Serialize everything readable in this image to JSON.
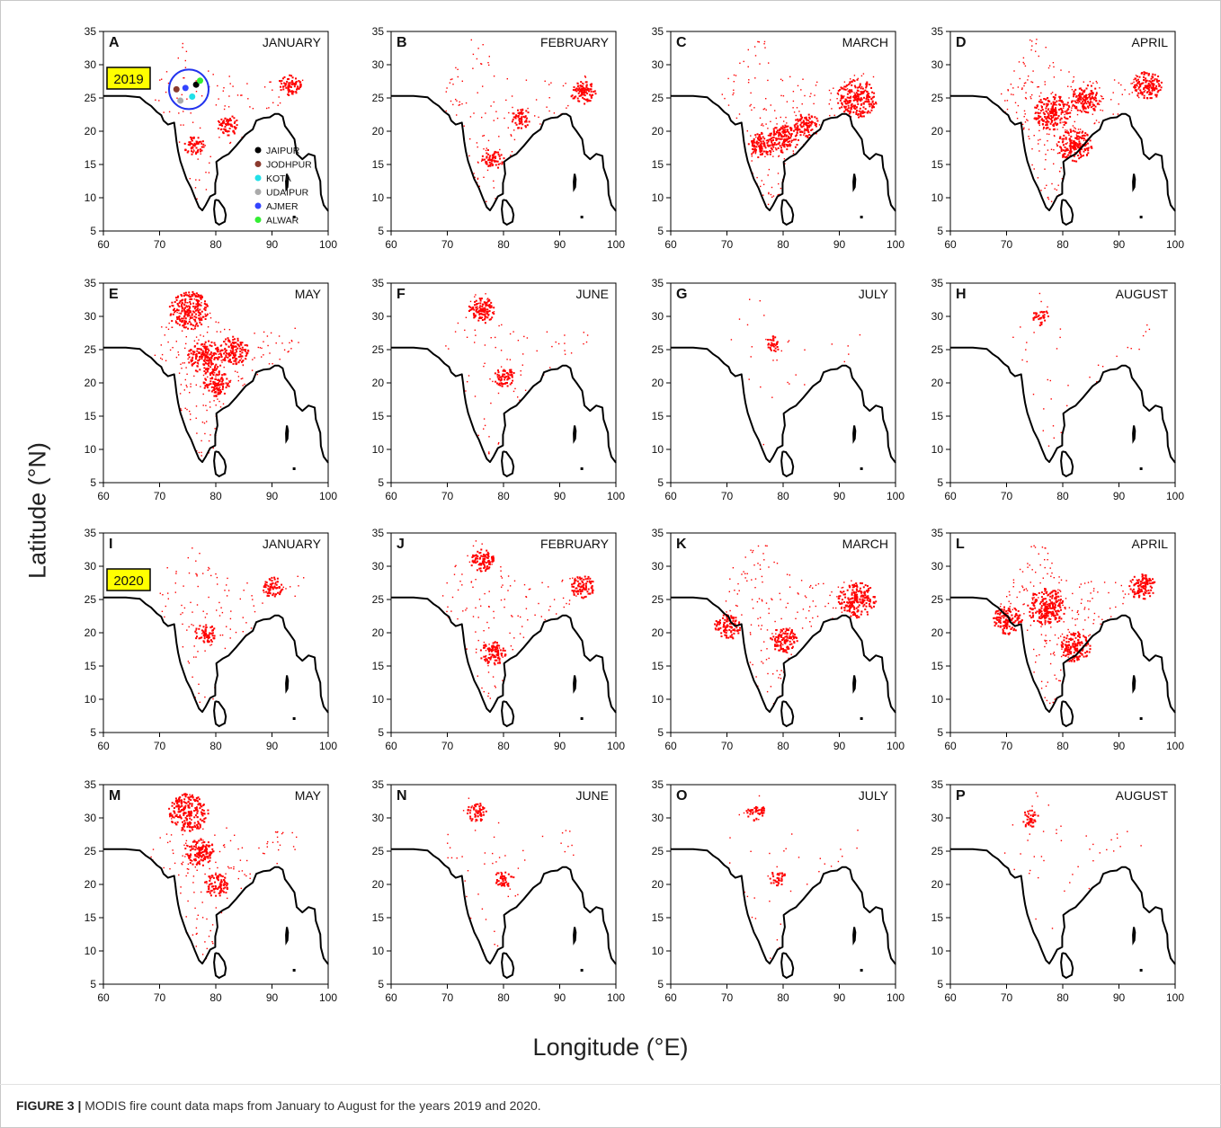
{
  "figure": {
    "caption_label": "FIGURE 3 |",
    "caption_text": " MODIS fire count data maps from January to August for the years 2019 and 2020.",
    "xlabel": "Longitude (°E)",
    "ylabel": "Latitude (°N)",
    "xticks": [
      60,
      70,
      80,
      90,
      100
    ],
    "yticks": [
      5,
      10,
      15,
      20,
      25,
      30,
      35
    ],
    "lon_range": [
      60,
      100
    ],
    "lat_range": [
      5,
      35
    ],
    "colors": {
      "fire": "#ff0000",
      "coast": "#000000",
      "year_badge": "#ffff00",
      "circle": "#2233ee"
    }
  },
  "panels": [
    {
      "letter": "A",
      "month": "JANUARY",
      "year_badge": "2019",
      "intensity": 0.35,
      "hotspots": [
        [
          93,
          27,
          0.35
        ],
        [
          82,
          21,
          0.3
        ],
        [
          76,
          18,
          0.25
        ]
      ]
    },
    {
      "letter": "B",
      "month": "FEBRUARY",
      "intensity": 0.4,
      "hotspots": [
        [
          94,
          26,
          0.45
        ],
        [
          78,
          16,
          0.3
        ],
        [
          83,
          22,
          0.25
        ]
      ]
    },
    {
      "letter": "C",
      "month": "MARCH",
      "intensity": 0.7,
      "hotspots": [
        [
          93,
          25,
          1.0
        ],
        [
          80,
          19,
          0.6
        ],
        [
          76,
          18,
          0.5
        ],
        [
          84,
          21,
          0.45
        ]
      ]
    },
    {
      "letter": "D",
      "month": "APRIL",
      "intensity": 0.9,
      "hotspots": [
        [
          78,
          23,
          0.9
        ],
        [
          82,
          18,
          0.8
        ],
        [
          84,
          25,
          0.6
        ],
        [
          95,
          27,
          0.6
        ]
      ]
    },
    {
      "letter": "E",
      "month": "MAY",
      "intensity": 0.8,
      "hotspots": [
        [
          75,
          31,
          1.0
        ],
        [
          78,
          24,
          0.8
        ],
        [
          83,
          25,
          0.6
        ],
        [
          80,
          20,
          0.5
        ]
      ]
    },
    {
      "letter": "F",
      "month": "JUNE",
      "intensity": 0.25,
      "hotspots": [
        [
          76,
          31,
          0.5
        ],
        [
          80,
          21,
          0.3
        ]
      ]
    },
    {
      "letter": "G",
      "month": "JULY",
      "intensity": 0.08,
      "hotspots": [
        [
          78,
          26,
          0.15
        ]
      ]
    },
    {
      "letter": "H",
      "month": "AUGUST",
      "intensity": 0.08,
      "hotspots": [
        [
          76,
          30,
          0.15
        ]
      ]
    },
    {
      "letter": "I",
      "month": "JANUARY",
      "year_badge": "2020",
      "intensity": 0.35,
      "hotspots": [
        [
          78,
          20,
          0.3
        ],
        [
          90,
          27,
          0.3
        ]
      ]
    },
    {
      "letter": "J",
      "month": "FEBRUARY",
      "intensity": 0.45,
      "hotspots": [
        [
          76,
          31,
          0.4
        ],
        [
          78,
          17,
          0.45
        ],
        [
          94,
          27,
          0.4
        ]
      ]
    },
    {
      "letter": "K",
      "month": "MARCH",
      "intensity": 0.55,
      "hotspots": [
        [
          93,
          25,
          0.9
        ],
        [
          80,
          19,
          0.5
        ],
        [
          70,
          21,
          0.5
        ]
      ]
    },
    {
      "letter": "L",
      "month": "APRIL",
      "intensity": 0.75,
      "hotspots": [
        [
          77,
          24,
          0.95
        ],
        [
          82,
          18,
          0.7
        ],
        [
          70,
          22,
          0.6
        ],
        [
          94,
          27,
          0.5
        ]
      ]
    },
    {
      "letter": "M",
      "month": "MAY",
      "intensity": 0.55,
      "hotspots": [
        [
          75,
          31,
          1.0
        ],
        [
          77,
          25,
          0.6
        ],
        [
          80,
          20,
          0.4
        ]
      ]
    },
    {
      "letter": "N",
      "month": "JUNE",
      "intensity": 0.12,
      "hotspots": [
        [
          75,
          31,
          0.25
        ],
        [
          80,
          21,
          0.2
        ]
      ]
    },
    {
      "letter": "O",
      "month": "JULY",
      "intensity": 0.1,
      "hotspots": [
        [
          75,
          31,
          0.2
        ],
        [
          79,
          21,
          0.15
        ]
      ]
    },
    {
      "letter": "P",
      "month": "AUGUST",
      "intensity": 0.1,
      "hotspots": [
        [
          74,
          30,
          0.2
        ]
      ]
    }
  ],
  "legend": {
    "entries": [
      {
        "name": "JAIPUR",
        "color": "#000000",
        "lon": 76.5,
        "lat": 27.0
      },
      {
        "name": "JODHPUR",
        "color": "#8b3a2e",
        "lon": 73.0,
        "lat": 26.3
      },
      {
        "name": "KOTA",
        "color": "#22e0e8",
        "lon": 75.8,
        "lat": 25.2
      },
      {
        "name": "UDAIPUR",
        "color": "#aaaaaa",
        "lon": 73.7,
        "lat": 24.6
      },
      {
        "name": "AJMER",
        "color": "#3344ff",
        "lon": 74.6,
        "lat": 26.5
      },
      {
        "name": "ALWAR",
        "color": "#33ee33",
        "lon": 77.2,
        "lat": 27.6
      }
    ]
  }
}
